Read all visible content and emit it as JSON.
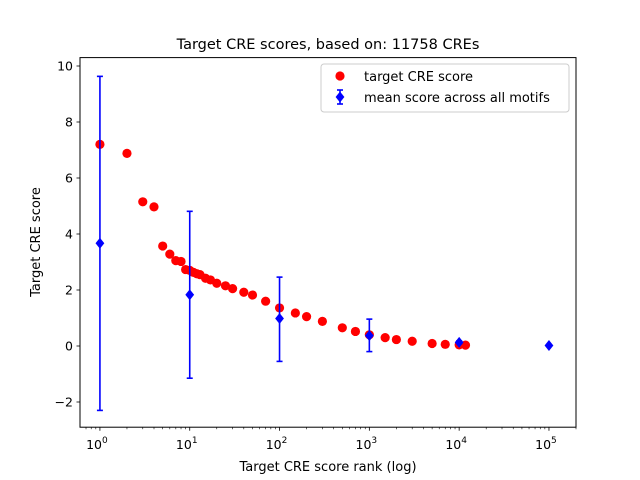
{
  "chart_data": {
    "type": "scatter",
    "title": "Target CRE scores, based on: 11758 CREs",
    "xlabel": "Target CRE score rank (log)",
    "ylabel": "Target CRE score",
    "xscale": "log",
    "xlim": [
      0.6,
      200000
    ],
    "ylim": [
      -2.9,
      10.3
    ],
    "xticks": [
      {
        "base": "10",
        "exp": "0"
      },
      {
        "base": "10",
        "exp": "1"
      },
      {
        "base": "10",
        "exp": "2"
      },
      {
        "base": "10",
        "exp": "3"
      },
      {
        "base": "10",
        "exp": "4"
      },
      {
        "base": "10",
        "exp": "5"
      }
    ],
    "xtick_values": [
      1,
      10,
      100,
      1000,
      10000,
      100000
    ],
    "yticks": [
      "−2",
      "0",
      "2",
      "4",
      "6",
      "8",
      "10"
    ],
    "ytick_values": [
      -2,
      0,
      2,
      4,
      6,
      8,
      10
    ],
    "grid": false,
    "legend_position": "upper right",
    "series": [
      {
        "name": "target CRE score",
        "marker": "circle",
        "color": "#ff0000",
        "points": [
          [
            1,
            7.2
          ],
          [
            2,
            6.88
          ],
          [
            3,
            5.15
          ],
          [
            4,
            4.97
          ],
          [
            5,
            3.57
          ],
          [
            6,
            3.28
          ],
          [
            7,
            3.05
          ],
          [
            8,
            3.02
          ],
          [
            9,
            2.73
          ],
          [
            10,
            2.7
          ],
          [
            11,
            2.63
          ],
          [
            12,
            2.58
          ],
          [
            13,
            2.55
          ],
          [
            15,
            2.42
          ],
          [
            17,
            2.36
          ],
          [
            20,
            2.24
          ],
          [
            25,
            2.15
          ],
          [
            30,
            2.05
          ],
          [
            40,
            1.92
          ],
          [
            50,
            1.82
          ],
          [
            70,
            1.6
          ],
          [
            100,
            1.36
          ],
          [
            150,
            1.18
          ],
          [
            200,
            1.05
          ],
          [
            300,
            0.88
          ],
          [
            500,
            0.65
          ],
          [
            700,
            0.52
          ],
          [
            1000,
            0.4
          ],
          [
            1500,
            0.3
          ],
          [
            2000,
            0.23
          ],
          [
            3000,
            0.17
          ],
          [
            5000,
            0.09
          ],
          [
            7000,
            0.06
          ],
          [
            10000,
            0.04
          ],
          [
            11758,
            0.03
          ]
        ]
      },
      {
        "name": "mean score across all motifs",
        "marker": "diamond",
        "color": "#0000ff",
        "points": [
          {
            "x": 1,
            "y": 3.67,
            "err_low": -2.3,
            "err_high": 9.63
          },
          {
            "x": 10,
            "y": 1.83,
            "err_low": -1.15,
            "err_high": 4.81
          },
          {
            "x": 100,
            "y": 0.98,
            "err_low": -0.55,
            "err_high": 2.46
          },
          {
            "x": 1000,
            "y": 0.37,
            "err_low": -0.2,
            "err_high": 0.96
          },
          {
            "x": 10000,
            "y": 0.13,
            "err_low": 0.08,
            "err_high": 0.18
          },
          {
            "x": 100000,
            "y": 0.02,
            "err_low": 0.02,
            "err_high": 0.02
          }
        ]
      }
    ]
  }
}
